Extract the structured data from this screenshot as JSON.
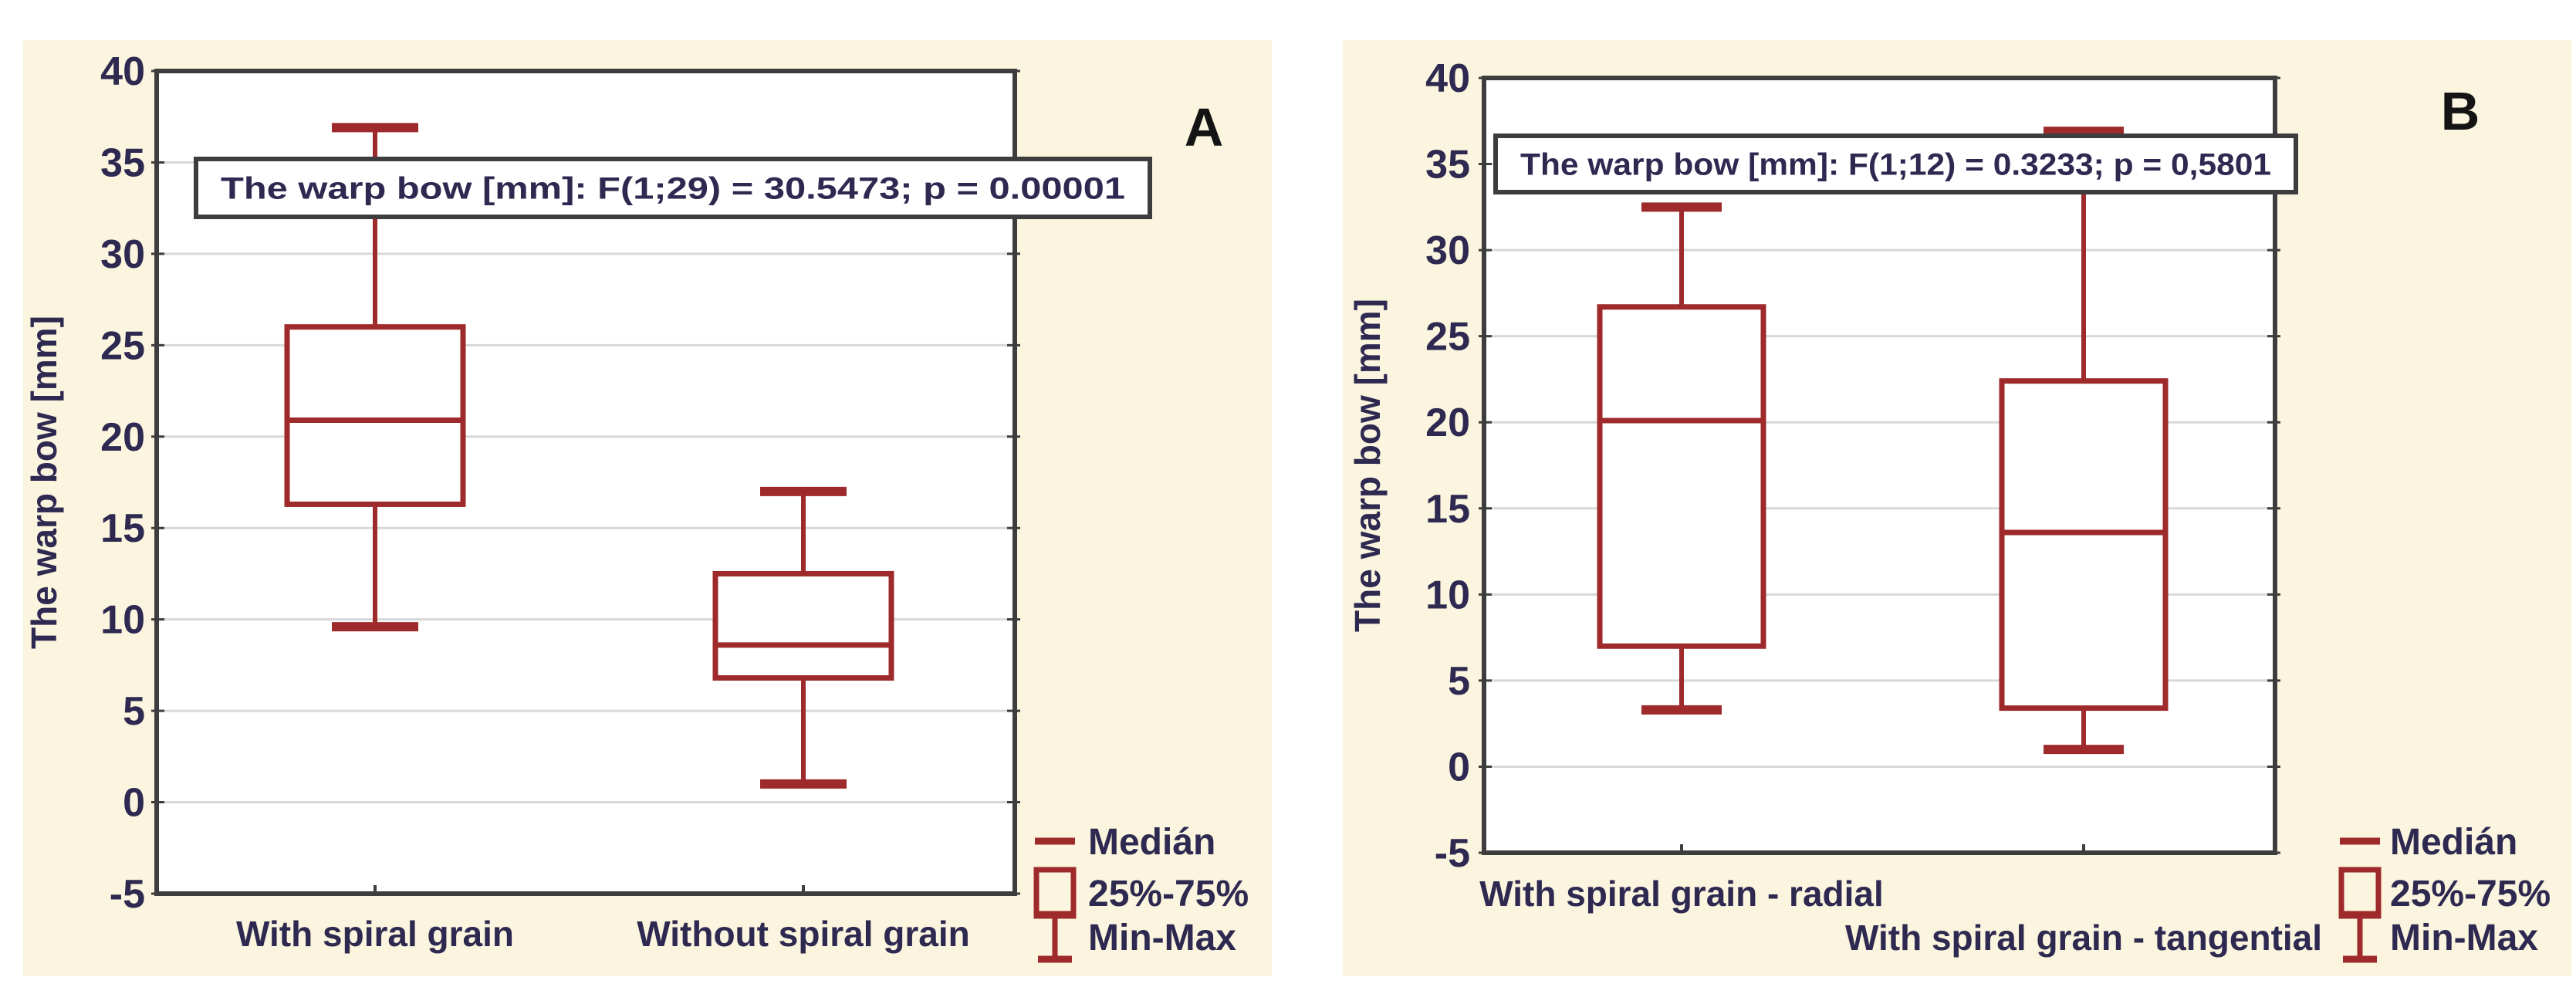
{
  "figure": {
    "background": "#ffffff",
    "panel_background": "#fbf4de",
    "plot_background": "#ffffff",
    "box_color": "#9e2a2b",
    "frame_color": "#3d3d3d",
    "grid_color": "#d8d8d8",
    "text_color": "#2e2950",
    "panel_letter_color": "#141414"
  },
  "chart_data": [
    {
      "type": "box",
      "panel_letter": "A",
      "annotation": "The warp bow [mm]:    F(1;29) = 30.5473; p = 0.00001",
      "ylabel": "The warp bow [mm]",
      "ylim": [
        -5,
        40
      ],
      "yticks": [
        40,
        35,
        30,
        25,
        20,
        15,
        10,
        5,
        0,
        -5
      ],
      "grid": "horizontal",
      "legend_position": "bottom-right",
      "legend": [
        {
          "label": "Medián",
          "icon": "median-dash-icon"
        },
        {
          "label": "25%-75%",
          "icon": "box-rect-icon"
        },
        {
          "label": "Min-Max",
          "icon": "whisker-ibeam-icon"
        }
      ],
      "categories": [
        "With spiral grain",
        "Without spiral grain"
      ],
      "series": [
        {
          "name": "With spiral grain",
          "min": 9.6,
          "q1": 16.3,
          "median": 20.9,
          "q3": 26.0,
          "max": 36.9
        },
        {
          "name": "Without spiral grain",
          "min": 1.0,
          "q1": 6.8,
          "median": 8.6,
          "q3": 12.5,
          "max": 17.0
        }
      ]
    },
    {
      "type": "box",
      "panel_letter": "B",
      "annotation": "The warp bow [mm]:    F(1;12) = 0.3233; p = 0,5801",
      "ylabel": "The warp bow [mm]",
      "ylim": [
        -5,
        40
      ],
      "yticks": [
        40,
        35,
        30,
        25,
        20,
        15,
        10,
        5,
        0,
        -5
      ],
      "grid": "horizontal",
      "legend_position": "bottom-right",
      "legend": [
        {
          "label": "Medián",
          "icon": "median-dash-icon"
        },
        {
          "label": "25%-75%",
          "icon": "box-rect-icon"
        },
        {
          "label": "Min-Max",
          "icon": "whisker-ibeam-icon"
        }
      ],
      "categories": [
        "With spiral grain - radial",
        "With spiral grain - tangential"
      ],
      "series": [
        {
          "name": "With spiral grain - radial",
          "min": 3.3,
          "q1": 7.0,
          "median": 20.1,
          "q3": 26.7,
          "max": 32.5
        },
        {
          "name": "With spiral grain - tangential",
          "min": 1.0,
          "q1": 3.4,
          "median": 13.6,
          "q3": 22.4,
          "max": 36.9
        }
      ]
    }
  ]
}
